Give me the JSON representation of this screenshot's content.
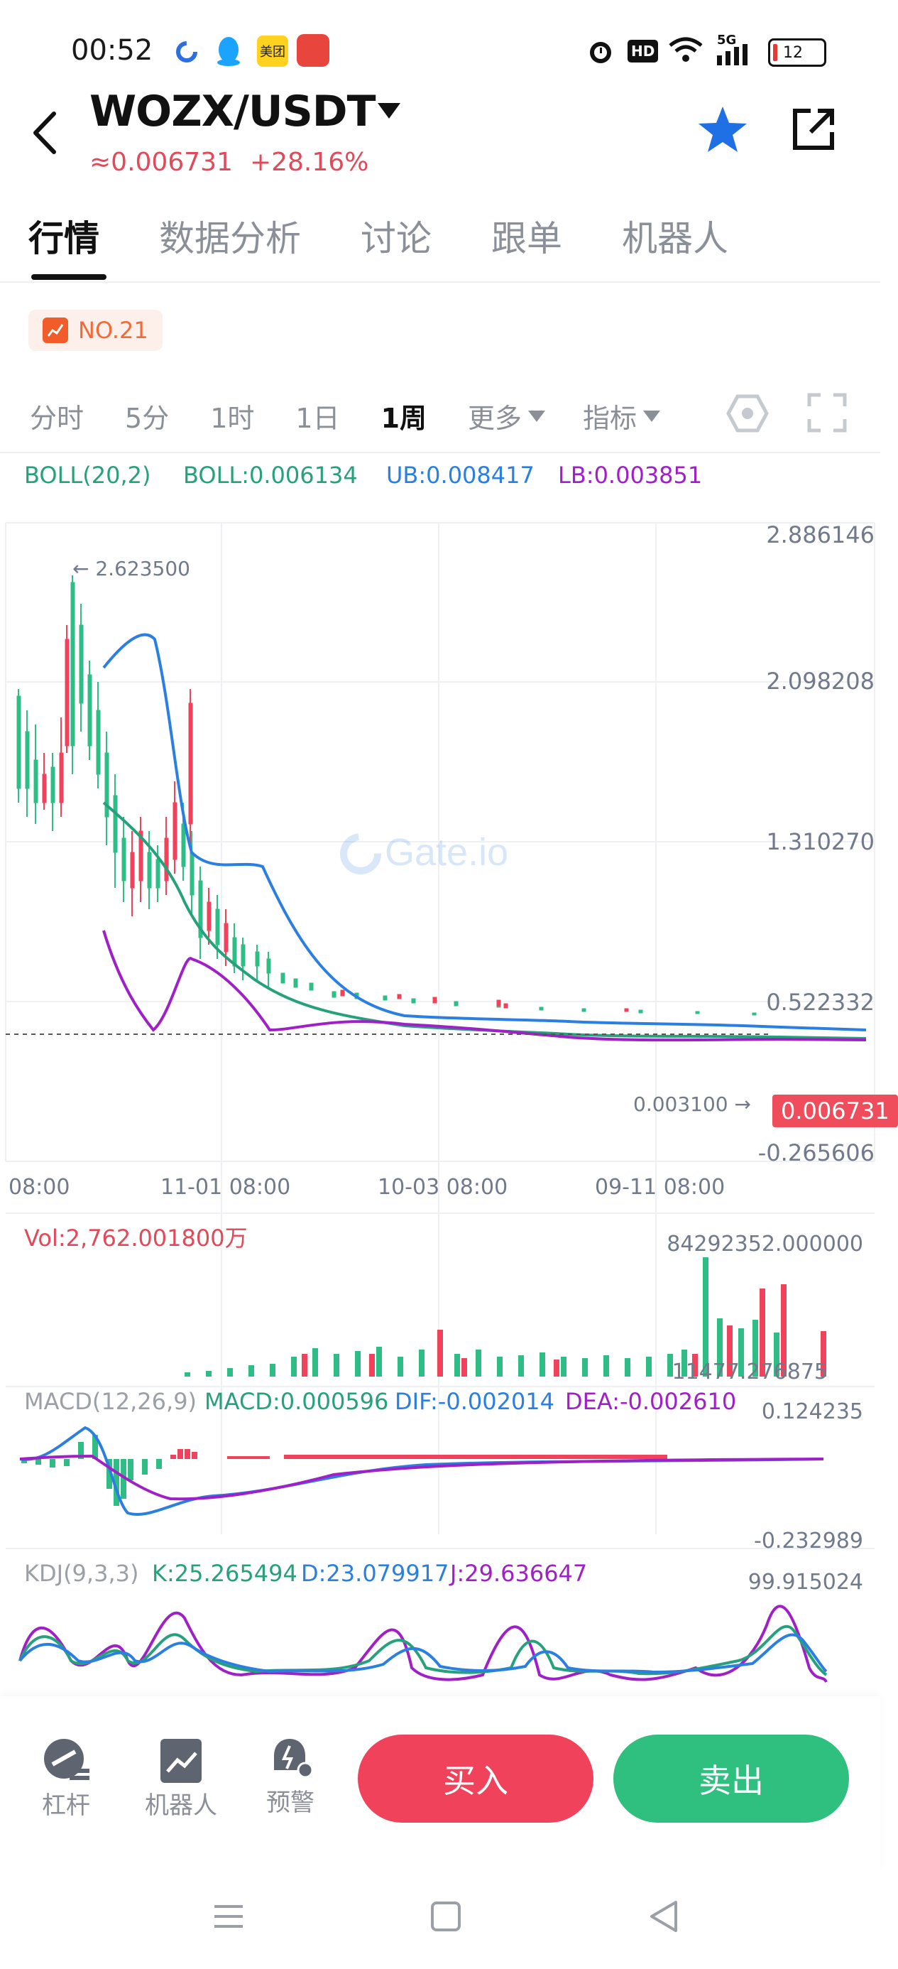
{
  "status_bar": {
    "time": "00:52",
    "app_icons": [
      "chrome-like-icon",
      "qq-penguin-icon",
      "meituan-icon",
      "game-icon"
    ],
    "meituan_text": "美团",
    "signal_text": "5G",
    "hd_text": "HD",
    "battery_level": "12"
  },
  "header": {
    "pair": "WOZX/USDT",
    "price": "≈0.006731",
    "change": "+28.16%"
  },
  "tabs": [
    {
      "label": "行情",
      "active": true
    },
    {
      "label": "数据分析",
      "active": false
    },
    {
      "label": "讨论",
      "active": false
    },
    {
      "label": "跟单",
      "active": false
    },
    {
      "label": "机器人",
      "active": false
    }
  ],
  "rank": {
    "label": "NO.21"
  },
  "timeframes": {
    "items": [
      "分时",
      "5分",
      "1时",
      "1日",
      "1周"
    ],
    "active": "1周",
    "more": "更多",
    "indicator": "指标"
  },
  "boll": {
    "name": "BOLL(20,2)",
    "mid": "BOLL:0.006134",
    "ub": "UB:0.008417",
    "lb": "LB:0.003851"
  },
  "price_axis": {
    "labels": [
      "2.886146",
      "2.098208",
      "1.310270",
      "0.522332",
      "-0.265606"
    ],
    "high_marker": "← 2.623500",
    "low_marker": "0.003100 →",
    "last_price": "0.006731",
    "watermark": "Gate.io"
  },
  "time_axis": [
    "08:00",
    "11-01 08:00",
    "10-03 08:00",
    "09-11 08:00"
  ],
  "volume": {
    "label": "Vol:2,762.001800万",
    "max": "84292352.000000",
    "min": "11477.276875"
  },
  "macd": {
    "name": "MACD(12,26,9)",
    "macd": "MACD:0.000596",
    "dif": "DIF:-0.002014",
    "dea": "DEA:-0.002610",
    "max": "0.124235",
    "min": "-0.232989"
  },
  "kdj": {
    "name": "KDJ(9,3,3)",
    "k": "K:25.265494",
    "d": "D:23.079917",
    "j": "J:29.636647",
    "max": "99.915024"
  },
  "toolbar": {
    "leverage": "杠杆",
    "robot": "机器人",
    "alert": "预警",
    "buy": "买入",
    "sell": "卖出"
  },
  "colors": {
    "up": "#2ebd85",
    "down": "#f0435b",
    "boll_mid": "#26a17b",
    "boll_ub": "#2a7fe0",
    "boll_lb": "#a020c8",
    "star": "#1f6fe5"
  }
}
